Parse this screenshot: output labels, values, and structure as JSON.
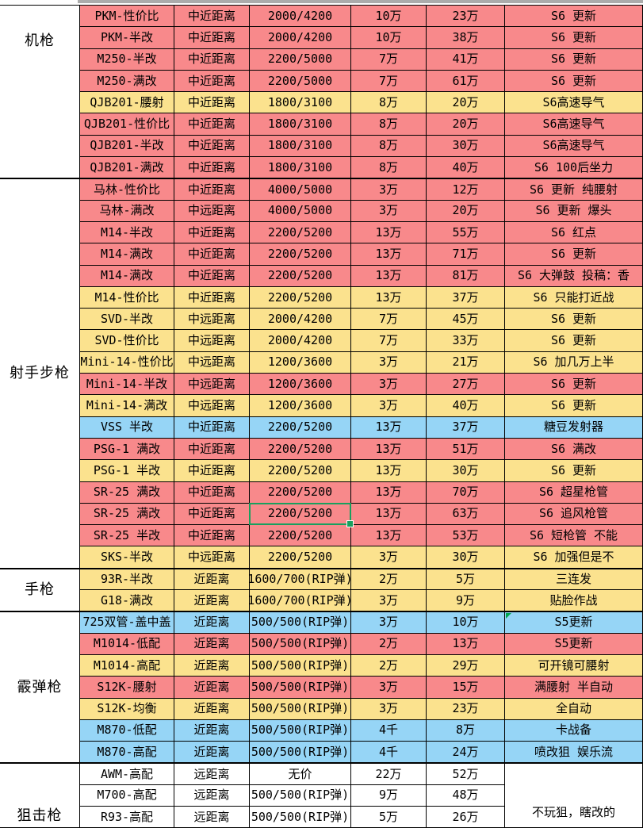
{
  "colors": {
    "row_red": "#f8898b",
    "row_yellow": "#fbe28e",
    "row_blue": "#96d5f6",
    "row_white": "#ffffff",
    "selection_green": "#18a05e",
    "comment_marker_green": "#00a650",
    "clipped_row_gray": "#ababab",
    "grid_border": "#000000"
  },
  "selection": {
    "section": 1,
    "row": 15,
    "column": "ammo"
  },
  "comment_marker": {
    "section": 3,
    "row": 0,
    "column": "note"
  },
  "sections": [
    {
      "category": "机枪",
      "rows": [
        {
          "name": "PKM-性价比",
          "range": "中近距离",
          "ammo": "2000/4200",
          "price_unlock": "10万",
          "price_full": "23万",
          "note": "S6 更新",
          "color": "red"
        },
        {
          "name": "PKM-半改",
          "range": "中近距离",
          "ammo": "2000/4200",
          "price_unlock": "10万",
          "price_full": "38万",
          "note": "S6 更新",
          "color": "red"
        },
        {
          "name": "M250-半改",
          "range": "中近距离",
          "ammo": "2200/5000",
          "price_unlock": "7万",
          "price_full": "41万",
          "note": "S6 更新",
          "color": "red"
        },
        {
          "name": "M250-满改",
          "range": "中近距离",
          "ammo": "2200/5000",
          "price_unlock": "7万",
          "price_full": "61万",
          "note": "S6 更新",
          "color": "red"
        },
        {
          "name": "QJB201-腰射",
          "range": "中近距离",
          "ammo": "1800/3100",
          "price_unlock": "8万",
          "price_full": "20万",
          "note": "S6高速导气",
          "color": "yellow"
        },
        {
          "name": "QJB201-性价比",
          "range": "中近距离",
          "ammo": "1800/3100",
          "price_unlock": "8万",
          "price_full": "20万",
          "note": "S6高速导气",
          "color": "red"
        },
        {
          "name": "QJB201-半改",
          "range": "中近距离",
          "ammo": "1800/3100",
          "price_unlock": "8万",
          "price_full": "30万",
          "note": "S6高速导气",
          "color": "red"
        },
        {
          "name": "QJB201-满改",
          "range": "中近距离",
          "ammo": "1800/3100",
          "price_unlock": "8万",
          "price_full": "40万",
          "note": "S6 100后坐力",
          "color": "red"
        }
      ]
    },
    {
      "category": "射手步枪",
      "rows": [
        {
          "name": "马林-性价比",
          "range": "中近距离",
          "ammo": "4000/5000",
          "price_unlock": "3万",
          "price_full": "12万",
          "note": "S6 更新 纯腰射",
          "color": "red"
        },
        {
          "name": "马林-满改",
          "range": "中远距离",
          "ammo": "4000/5000",
          "price_unlock": "3万",
          "price_full": "20万",
          "note": "S6 更新 爆头",
          "color": "red"
        },
        {
          "name": "M14-半改",
          "range": "中近距离",
          "ammo": "2200/5200",
          "price_unlock": "13万",
          "price_full": "55万",
          "note": "S6 红点",
          "color": "red"
        },
        {
          "name": "M14-满改",
          "range": "中近距离",
          "ammo": "2200/5200",
          "price_unlock": "13万",
          "price_full": "71万",
          "note": "S6 更新",
          "color": "red"
        },
        {
          "name": "M14-满改",
          "range": "中近距离",
          "ammo": "2200/5200",
          "price_unlock": "13万",
          "price_full": "81万",
          "note": "S6 大弹鼓  投稿：香",
          "color": "red"
        },
        {
          "name": "M14-性价比",
          "range": "中近距离",
          "ammo": "2200/5200",
          "price_unlock": "13万",
          "price_full": "37万",
          "note": "S6 只能打近战",
          "color": "yellow"
        },
        {
          "name": "SVD-半改",
          "range": "中远距离",
          "ammo": "2000/4200",
          "price_unlock": "7万",
          "price_full": "45万",
          "note": "S6 更新",
          "color": "yellow"
        },
        {
          "name": "SVD-性价比",
          "range": "中远距离",
          "ammo": "2000/4200",
          "price_unlock": "7万",
          "price_full": "33万",
          "note": "S6 更新",
          "color": "yellow"
        },
        {
          "name": "Mini-14-性价比",
          "range": "中远距离",
          "ammo": "1200/3600",
          "price_unlock": "3万",
          "price_full": "21万",
          "note": "S6 加几万上半",
          "color": "yellow"
        },
        {
          "name": "Mini-14-半改",
          "range": "中远距离",
          "ammo": "1200/3600",
          "price_unlock": "3万",
          "price_full": "27万",
          "note": "S6 更新",
          "color": "red"
        },
        {
          "name": "Mini-14-满改",
          "range": "中远距离",
          "ammo": "1200/3600",
          "price_unlock": "3万",
          "price_full": "40万",
          "note": "S6 更新",
          "color": "yellow"
        },
        {
          "name": "VSS 半改",
          "range": "中近距离",
          "ammo": "2200/5200",
          "price_unlock": "13万",
          "price_full": "37万",
          "note": "糖豆发射器",
          "color": "blue"
        },
        {
          "name": "PSG-1 满改",
          "range": "中近距离",
          "ammo": "2200/5200",
          "price_unlock": "13万",
          "price_full": "51万",
          "note": "S6 满改",
          "color": "red"
        },
        {
          "name": "PSG-1 半改",
          "range": "中近距离",
          "ammo": "2200/5200",
          "price_unlock": "13万",
          "price_full": "30万",
          "note": "S6 更新",
          "color": "yellow"
        },
        {
          "name": "SR-25 满改",
          "range": "中近距离",
          "ammo": "2200/5200",
          "price_unlock": "13万",
          "price_full": "70万",
          "note": "S6 超星枪管",
          "color": "red"
        },
        {
          "name": "SR-25 满改",
          "range": "中近距离",
          "ammo": "2200/5200",
          "price_unlock": "13万",
          "price_full": "63万",
          "note": "S6 追风枪管",
          "color": "red"
        },
        {
          "name": "SR-25 半改",
          "range": "中近距离",
          "ammo": "2200/5200",
          "price_unlock": "13万",
          "price_full": "53万",
          "note": "S6 短枪管 不能",
          "color": "red"
        },
        {
          "name": "SKS-半改",
          "range": "中远距离",
          "ammo": "2200/5200",
          "price_unlock": "3万",
          "price_full": "30万",
          "note": "S6 加强但是不",
          "color": "yellow"
        }
      ]
    },
    {
      "category": "手枪",
      "rows": [
        {
          "name": "93R-半改",
          "range": "近距离",
          "ammo": "1600/700(RIP弹)",
          "price_unlock": "2万",
          "price_full": "5万",
          "note": "三连发",
          "color": "yellow"
        },
        {
          "name": "G18-满改",
          "range": "近距离",
          "ammo": "1600/700(RIP弹)",
          "price_unlock": "3万",
          "price_full": "9万",
          "note": "贴脸作战",
          "color": "yellow"
        }
      ]
    },
    {
      "category": "霰弹枪",
      "rows": [
        {
          "name": "725双管-盖中盖",
          "range": "近距离",
          "ammo": "500/500(RIP弹)",
          "price_unlock": "3万",
          "price_full": "10万",
          "note": "S5更新",
          "color": "blue"
        },
        {
          "name": "M1014-低配",
          "range": "近距离",
          "ammo": "500/500(RIP弹)",
          "price_unlock": "2万",
          "price_full": "13万",
          "note": "S5更新",
          "color": "red"
        },
        {
          "name": "M1014-高配",
          "range": "近距离",
          "ammo": "500/500(RIP弹)",
          "price_unlock": "2万",
          "price_full": "29万",
          "note": "可开镜可腰射",
          "color": "yellow"
        },
        {
          "name": "S12K-腰射",
          "range": "近距离",
          "ammo": "500/500(RIP弹)",
          "price_unlock": "3万",
          "price_full": "15万",
          "note": "满腰射 半自动",
          "color": "red"
        },
        {
          "name": "S12K-均衡",
          "range": "近距离",
          "ammo": "500/500(RIP弹)",
          "price_unlock": "3万",
          "price_full": "23万",
          "note": "全自动",
          "color": "yellow"
        },
        {
          "name": "M870-低配",
          "range": "近距离",
          "ammo": "500/500(RIP弹)",
          "price_unlock": "4千",
          "price_full": "8万",
          "note": "卡战备",
          "color": "blue"
        },
        {
          "name": "M870-高配",
          "range": "近距离",
          "ammo": "500/500(RIP弹)",
          "price_unlock": "4千",
          "price_full": "24万",
          "note": "喷改狙 娱乐流",
          "color": "blue"
        }
      ]
    },
    {
      "category": "狙击枪",
      "merged_note": "不玩狙，瞎改的",
      "rows": [
        {
          "name": "AWM-高配",
          "range": "远距离",
          "ammo": "无价",
          "price_unlock": "22万",
          "price_full": "52万",
          "color": "white"
        },
        {
          "name": "M700-高配",
          "range": "远距离",
          "ammo": "500/500(RIP弹)",
          "price_unlock": "9万",
          "price_full": "48万",
          "color": "white"
        },
        {
          "name": "R93-高配",
          "range": "远距离",
          "ammo": "500/500(RIP弹)",
          "price_unlock": "5万",
          "price_full": "26万",
          "color": "white"
        }
      ]
    }
  ]
}
